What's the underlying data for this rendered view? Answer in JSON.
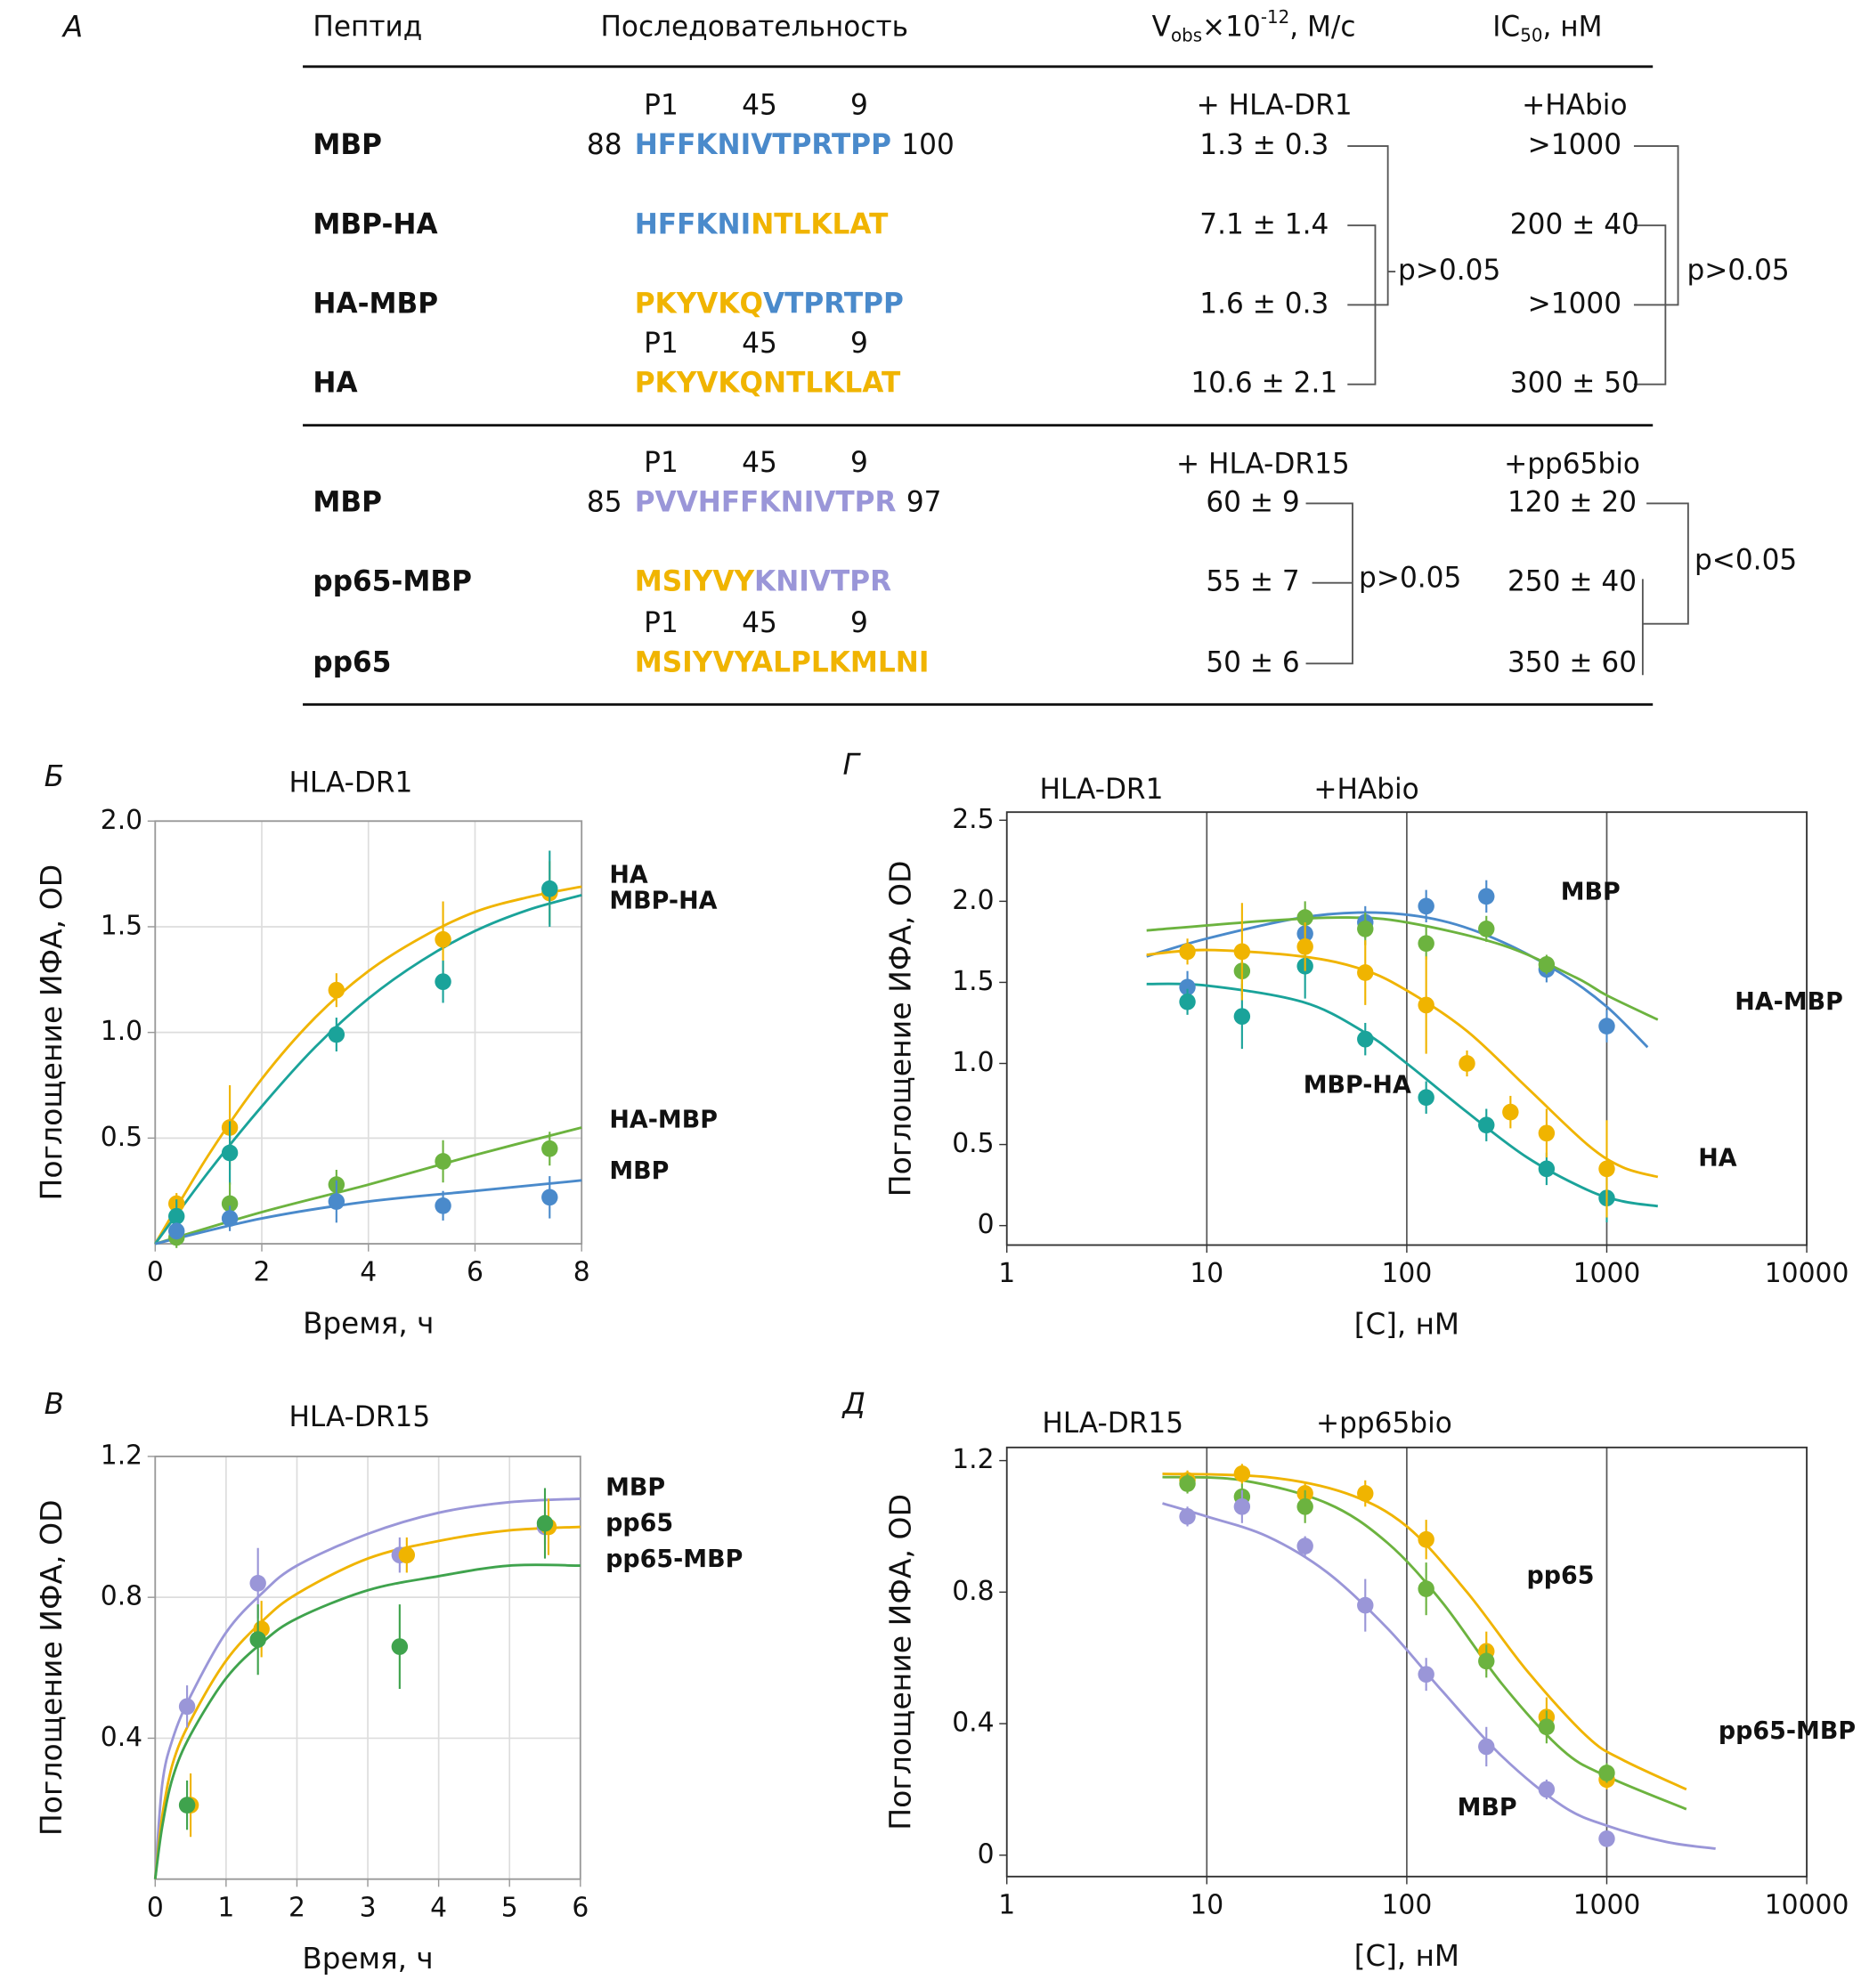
{
  "table": {
    "label": "А",
    "header": {
      "peptide": "Пептид",
      "sequence": "Последовательность",
      "v": {
        "main": "V",
        "sub": "obs",
        "times": "×10",
        "sup": "-12",
        "unit": ", M/c"
      },
      "ic": {
        "main": "IC",
        "sub": "50",
        "unit": ", нМ"
      }
    },
    "sections": [
      {
        "v_condition": "+ HLA-DR1",
        "ic_condition": "+HAbio",
        "p_v": "p>0.05",
        "p_ic": "p>0.05",
        "rows": [
          {
            "markers": [
              "P1",
              45,
              9
            ],
            "name": "MBP",
            "color": "#4a8acb",
            "start": 88,
            "end": 100,
            "sequence": [
              {
                "text": "HFFKNIVTPRTPP",
                "color": "#4a8acb"
              }
            ],
            "v": "1.3 ± 0.3",
            "ic": ">1000"
          },
          {
            "name": "MBP-HA",
            "color": "#1aa39a",
            "sequence": [
              {
                "text": "HFFKNI",
                "color": "#4a8acb"
              },
              {
                "text": "NTLKLAT",
                "color": "#f0b400"
              }
            ],
            "v": "7.1 ± 1.4",
            "ic": "200 ± 40"
          },
          {
            "name": "HA-MBP",
            "color": "#6cb33f",
            "sequence": [
              {
                "text": "PKYVKQ",
                "color": "#f0b400"
              },
              {
                "text": "VTPRTPP",
                "color": "#4a8acb"
              }
            ],
            "v": "1.6 ± 0.3",
            "ic": ">1000"
          },
          {
            "markers": [
              "P1",
              45,
              9
            ],
            "name": "HA",
            "color": "#f0b400",
            "sequence": [
              {
                "text": "PKYVKQNTLKLAT",
                "color": "#f0b400"
              }
            ],
            "v": "10.6 ± 2.1",
            "ic": "300 ± 50"
          }
        ]
      },
      {
        "v_condition": "+ HLA-DR15",
        "ic_condition": "+pp65bio",
        "p_v": "p>0.05",
        "p_ic": "p<0.05",
        "rows": [
          {
            "markers": [
              "P1",
              45,
              9
            ],
            "name": "MBP",
            "color": "#9a96d8",
            "start": 85,
            "end": 97,
            "sequence": [
              {
                "text": "PVVHFFKNIVTPR",
                "color": "#9a96d8"
              }
            ],
            "v": "60 ± 9",
            "ic": "120 ± 20"
          },
          {
            "name": "pp65-MBP",
            "color": "#6cb33f",
            "sequence": [
              {
                "text": "MSIYVY",
                "color": "#f0b400"
              },
              {
                "text": "KNIVTPR",
                "color": "#9a96d8"
              }
            ],
            "v": "55 ± 7",
            "ic": "250 ± 40"
          },
          {
            "markers": [
              "P1",
              45,
              9
            ],
            "name": "pp65",
            "color": "#f0b400",
            "sequence": [
              {
                "text": "MSIYVYALPLKMLNI",
                "color": "#f0b400"
              }
            ],
            "v": "50 ± 6",
            "ic": "350 ± 60"
          }
        ]
      }
    ]
  },
  "chart_data": [
    {
      "type": "scatter",
      "panel": "Б",
      "title": "HLA-DR1",
      "xlabel": "Время, ч",
      "ylabel": "Поглощение ИФА, OD",
      "xlim": [
        0,
        8
      ],
      "ylim": [
        0,
        2.0
      ],
      "xticks": [
        0,
        2,
        4,
        6,
        8
      ],
      "yticks": [
        0.5,
        {
          "value": 1,
          "label": "1.0"
        },
        1.5,
        {
          "value": 2,
          "label": "2.0"
        }
      ],
      "grid": true,
      "series": [
        {
          "name": "HA",
          "color": "#f0b400",
          "x": [
            0.4,
            1.4,
            3.4,
            5.4,
            7.4
          ],
          "values": [
            0.19,
            0.55,
            1.2,
            1.44,
            1.66
          ],
          "errors": [
            0.05,
            0.2,
            0.08,
            0.18,
            0.15
          ],
          "fit": {
            "x": [
              0,
              1,
              2,
              3,
              4,
              5,
              6,
              7,
              8
            ],
            "y": [
              0,
              0.42,
              0.78,
              1.07,
              1.29,
              1.45,
              1.57,
              1.64,
              1.69
            ]
          }
        },
        {
          "name": "MBP-HA",
          "color": "#1aa39a",
          "x": [
            0.4,
            1.4,
            3.4,
            5.4,
            7.4
          ],
          "values": [
            0.13,
            0.43,
            0.99,
            1.24,
            1.68
          ],
          "errors": [
            0.08,
            0.15,
            0.08,
            0.1,
            0.18
          ],
          "fit": {
            "x": [
              0,
              1,
              2,
              3,
              4,
              5,
              6,
              7,
              8
            ],
            "y": [
              0,
              0.34,
              0.65,
              0.93,
              1.16,
              1.34,
              1.48,
              1.58,
              1.65
            ]
          }
        },
        {
          "name": "HA-MBP",
          "color": "#6cb33f",
          "x": [
            0.4,
            1.4,
            3.4,
            5.4,
            7.4
          ],
          "values": [
            0.03,
            0.19,
            0.28,
            0.39,
            0.45
          ],
          "errors": [
            0.05,
            0.1,
            0.07,
            0.1,
            0.08
          ],
          "fit": {
            "x": [
              0,
              2,
              4,
              6,
              8
            ],
            "y": [
              0,
              0.15,
              0.28,
              0.42,
              0.55
            ]
          }
        },
        {
          "name": "MBP",
          "color": "#4a8acb",
          "x": [
            0.4,
            1.4,
            3.4,
            5.4,
            7.4
          ],
          "values": [
            0.06,
            0.12,
            0.2,
            0.18,
            0.22
          ],
          "errors": [
            0.04,
            0.06,
            0.1,
            0.07,
            0.1
          ],
          "fit": {
            "x": [
              0,
              2,
              4,
              6,
              8
            ],
            "y": [
              0,
              0.12,
              0.2,
              0.25,
              0.3
            ]
          }
        }
      ]
    },
    {
      "type": "scatter",
      "panel": "В",
      "title": "HLA-DR15",
      "xlabel": "Время, ч",
      "ylabel": "Поглощение ИФА, OD",
      "xlim": [
        0,
        6
      ],
      "ylim": [
        0,
        1.2
      ],
      "xticks": [
        0,
        1,
        2,
        3,
        4,
        5,
        6
      ],
      "yticks": [
        0.4,
        0.8,
        1.2
      ],
      "grid": true,
      "series": [
        {
          "name": "MBP",
          "color": "#9a96d8",
          "x": [
            0.45,
            1.45,
            3.45,
            5.5
          ],
          "values": [
            0.49,
            0.84,
            0.92,
            1.0
          ],
          "errors": [
            0.06,
            0.1,
            0.05,
            0.05
          ],
          "fit": {
            "x": [
              0,
              0.1,
              0.25,
              0.5,
              1,
              1.5,
              2,
              3,
              4,
              5,
              6
            ],
            "y": [
              0,
              0.27,
              0.4,
              0.52,
              0.7,
              0.81,
              0.89,
              0.98,
              1.04,
              1.07,
              1.08
            ]
          }
        },
        {
          "name": "pp65",
          "color": "#f0b400",
          "x": [
            0.5,
            1.5,
            3.55,
            5.55
          ],
          "values": [
            0.21,
            0.71,
            0.92,
            1.0
          ],
          "errors": [
            0.09,
            0.08,
            0.05,
            0.08
          ],
          "fit": {
            "x": [
              0,
              0.1,
              0.25,
              0.5,
              1,
              1.5,
              2,
              3,
              4,
              5,
              6
            ],
            "y": [
              0,
              0.18,
              0.33,
              0.45,
              0.62,
              0.73,
              0.81,
              0.91,
              0.96,
              0.99,
              1.0
            ]
          }
        },
        {
          "name": "pp65-MBP",
          "color": "#3fa34d",
          "x": [
            0.45,
            1.45,
            3.45,
            5.5
          ],
          "values": [
            0.21,
            0.68,
            0.66,
            1.01
          ],
          "errors": [
            0.07,
            0.1,
            0.12,
            0.1
          ],
          "fit": {
            "x": [
              0,
              0.1,
              0.25,
              0.5,
              1,
              1.5,
              2,
              3,
              4,
              5,
              6
            ],
            "y": [
              0,
              0.15,
              0.29,
              0.41,
              0.57,
              0.67,
              0.74,
              0.82,
              0.86,
              0.89,
              0.89
            ]
          }
        }
      ]
    },
    {
      "type": "scatter",
      "panel": "Г",
      "title": "HLA-DR1",
      "subtitle": "+HAbio",
      "xlabel": "[C], нМ",
      "ylabel": "Поглощение ИФА, OD",
      "xscale": "log",
      "xlim": [
        1,
        10000
      ],
      "ylim": [
        -0.12,
        2.55
      ],
      "xticks": [
        1,
        10,
        100,
        1000,
        10000
      ],
      "yticks": [
        0,
        0.5,
        {
          "value": 1,
          "label": "1.0"
        },
        1.5,
        {
          "value": 2,
          "label": "2.0"
        },
        2.5
      ],
      "grid": "x",
      "series": [
        {
          "name": "MBP",
          "color": "#4a8acb",
          "x": [
            8,
            31,
            62,
            125,
            250,
            500,
            1000
          ],
          "values": [
            1.47,
            1.8,
            1.87,
            1.97,
            2.03,
            1.58,
            1.23
          ],
          "errors": [
            0.1,
            0.1,
            0.1,
            0.1,
            0.1,
            0.08,
            0.1
          ],
          "fit": {
            "x": [
              5,
              10,
              30,
              70,
              150,
              300,
              600,
              1000,
              1600
            ],
            "y": [
              1.66,
              1.77,
              1.9,
              1.93,
              1.88,
              1.75,
              1.55,
              1.35,
              1.1
            ]
          }
        },
        {
          "name": "HA-MBP",
          "color": "#6cb33f",
          "x": [
            15,
            31,
            62,
            125,
            250,
            500
          ],
          "values": [
            1.57,
            1.9,
            1.83,
            1.74,
            1.83,
            1.61
          ],
          "errors": [
            0.15,
            0.1,
            0.1,
            0.1,
            0.08,
            0.06
          ],
          "fit": {
            "x": [
              5,
              20,
              50,
              100,
              300,
              700,
              1000,
              1800
            ],
            "y": [
              1.82,
              1.88,
              1.9,
              1.87,
              1.73,
              1.53,
              1.42,
              1.27
            ]
          }
        },
        {
          "name": "MBP-HA",
          "color": "#1aa39a",
          "x": [
            8,
            15,
            31,
            62,
            125,
            250,
            500,
            1000
          ],
          "values": [
            1.38,
            1.29,
            1.6,
            1.15,
            0.79,
            0.62,
            0.35,
            0.17
          ],
          "errors": [
            0.08,
            0.2,
            0.2,
            0.1,
            0.1,
            0.1,
            0.1,
            0.15
          ],
          "fit": {
            "x": [
              5,
              10,
              30,
              60,
              100,
              200,
              400,
              800,
              1200,
              1800
            ],
            "y": [
              1.49,
              1.48,
              1.38,
              1.2,
              1.0,
              0.7,
              0.42,
              0.22,
              0.15,
              0.12
            ]
          }
        },
        {
          "name": "HA",
          "color": "#f0b400",
          "x": [
            8,
            15,
            31,
            62,
            125,
            200,
            330,
            500,
            1000
          ],
          "values": [
            1.69,
            1.69,
            1.72,
            1.56,
            1.36,
            1.0,
            0.7,
            0.57,
            0.35
          ],
          "errors": [
            0.08,
            0.3,
            0.15,
            0.2,
            0.3,
            0.08,
            0.1,
            0.15,
            0.3
          ],
          "fit": {
            "x": [
              5,
              10,
              30,
              60,
              100,
              200,
              400,
              800,
              1200,
              1800
            ],
            "y": [
              1.67,
              1.7,
              1.66,
              1.58,
              1.45,
              1.2,
              0.85,
              0.5,
              0.36,
              0.3
            ]
          }
        }
      ]
    },
    {
      "type": "scatter",
      "panel": "Д",
      "title": "HLA-DR15",
      "subtitle": "+pp65bio",
      "xlabel": "[C], нМ",
      "ylabel": "Поглощение ИФА, OD",
      "xscale": "log",
      "xlim": [
        1,
        10000
      ],
      "ylim": [
        -0.065,
        1.24
      ],
      "xticks": [
        1,
        10,
        100,
        1000,
        10000
      ],
      "yticks": [
        0,
        0.4,
        0.8,
        1.2
      ],
      "grid": "x",
      "series": [
        {
          "name": "pp65",
          "color": "#f0b400",
          "x": [
            8,
            15,
            31,
            62,
            125,
            250,
            500,
            1000
          ],
          "values": [
            1.14,
            1.16,
            1.1,
            1.1,
            0.96,
            0.62,
            0.42,
            0.23
          ],
          "errors": [
            0.03,
            0.03,
            0.03,
            0.04,
            0.06,
            0.06,
            0.06,
            0.03
          ],
          "fit": {
            "x": [
              6,
              20,
              50,
              100,
              200,
              400,
              800,
              1200,
              2500
            ],
            "y": [
              1.16,
              1.15,
              1.1,
              1.0,
              0.8,
              0.56,
              0.36,
              0.29,
              0.2
            ]
          }
        },
        {
          "name": "pp65-MBP",
          "color": "#6cb33f",
          "x": [
            8,
            15,
            31,
            125,
            250,
            500,
            1000
          ],
          "values": [
            1.13,
            1.09,
            1.06,
            0.81,
            0.59,
            0.39,
            0.25
          ],
          "errors": [
            0.03,
            0.04,
            0.05,
            0.08,
            0.05,
            0.05,
            0.03
          ],
          "fit": {
            "x": [
              6,
              15,
              40,
              80,
              150,
              300,
              600,
              1000,
              2500
            ],
            "y": [
              1.15,
              1.14,
              1.07,
              0.95,
              0.77,
              0.52,
              0.32,
              0.24,
              0.14
            ]
          }
        },
        {
          "name": "MBP",
          "color": "#9a96d8",
          "x": [
            8,
            15,
            31,
            62,
            125,
            250,
            500,
            1000
          ],
          "values": [
            1.03,
            1.06,
            0.94,
            0.76,
            0.55,
            0.33,
            0.2,
            0.05
          ],
          "errors": [
            0.03,
            0.05,
            0.03,
            0.08,
            0.05,
            0.06,
            0.03,
            0.02
          ],
          "fit": {
            "x": [
              6,
              10,
              20,
              40,
              80,
              150,
              300,
              600,
              1000,
              2000,
              3500
            ],
            "y": [
              1.07,
              1.03,
              0.97,
              0.86,
              0.69,
              0.5,
              0.3,
              0.15,
              0.09,
              0.04,
              0.02
            ]
          }
        }
      ]
    }
  ]
}
